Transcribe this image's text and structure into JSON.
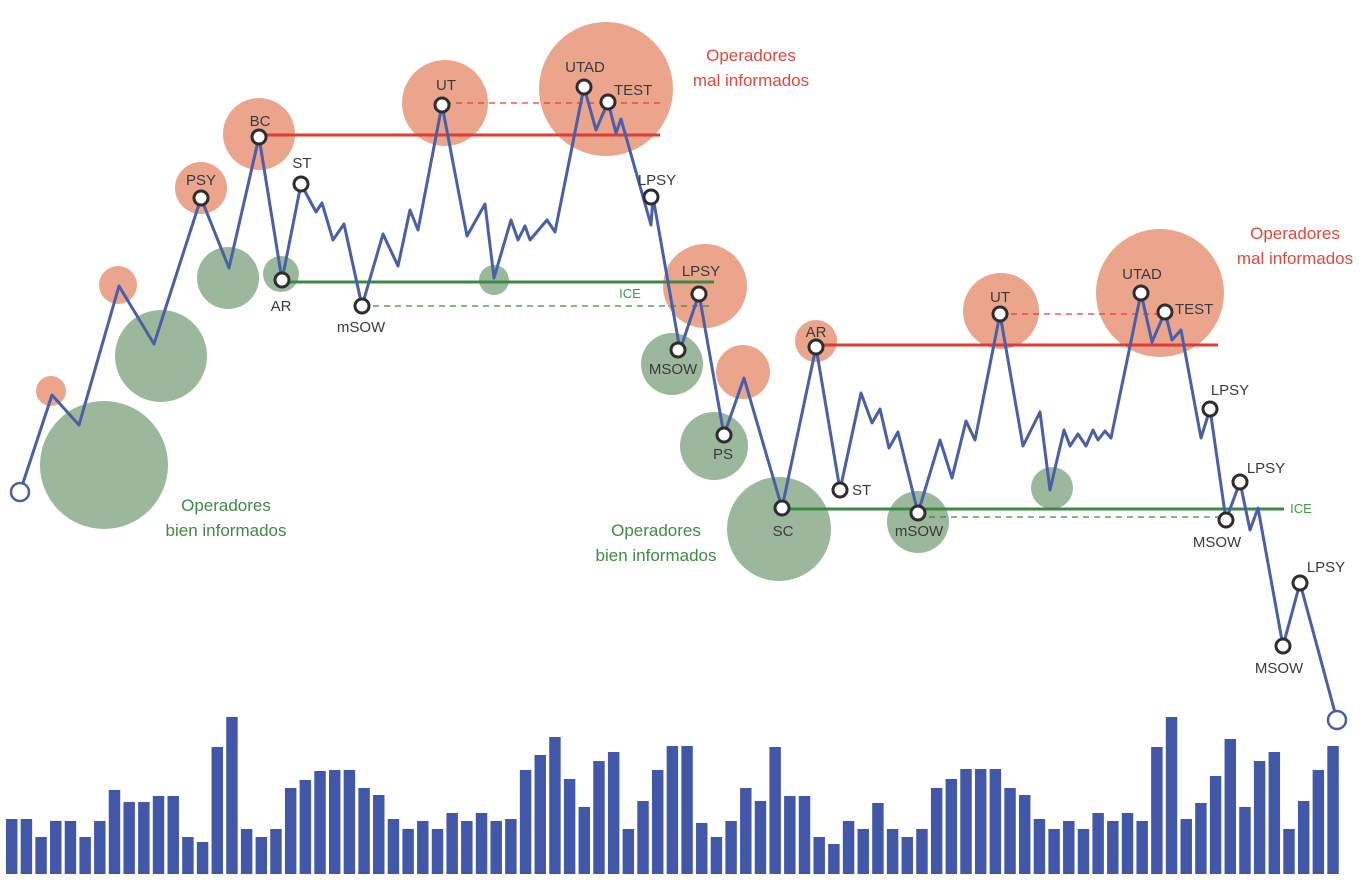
{
  "colors": {
    "price_line": "#4a5fa8",
    "bubble_red": "#eba58d",
    "bubble_green": "#9bb89c",
    "resistance": "#e23b33",
    "support": "#3a8a44",
    "volume": "#4257a8",
    "annotation_red": "#e04a3c",
    "annotation_green": "#3f8a45"
  },
  "annotations": {
    "distribution_uninformed": [
      "Operadores",
      "mal informados"
    ],
    "distribution_informed": [
      "Operadores",
      "bien informados"
    ],
    "redistribution_uninformed": [
      "Operadores",
      "mal informados"
    ],
    "redistribution_informed": [
      "Operadores",
      "bien informados"
    ]
  },
  "ice_labels": [
    "ICE",
    "ICE"
  ],
  "event_labels": {
    "psy": "PSY",
    "bc": "BC",
    "st1": "ST",
    "ar1": "AR",
    "msow1": "mSOW",
    "ut1": "UT",
    "utad1": "UTAD",
    "test1": "TEST",
    "lpsy1": "LPSY",
    "lpsy2": "LPSY",
    "msow_big1": "MSOW",
    "ps": "PS",
    "sc": "SC",
    "ar2": "AR",
    "st2": "ST",
    "msow2": "mSOW",
    "ut2": "UT",
    "utad2": "UTAD",
    "test2": "TEST",
    "lpsy3": "LPSY",
    "lpsy4": "LPSY",
    "msow_big2": "MSOW",
    "lpsy5": "LPSY",
    "msow_big3": "MSOW"
  },
  "volume": [
    55,
    55,
    37,
    53,
    53,
    37,
    53,
    84,
    72,
    72,
    78,
    78,
    37,
    32,
    127,
    157,
    45,
    37,
    45,
    86,
    94,
    103,
    104,
    104,
    86,
    79,
    55,
    45,
    53,
    45,
    61,
    53,
    61,
    53,
    55,
    104,
    119,
    137,
    95,
    67,
    113,
    122,
    45,
    73,
    104,
    128,
    128,
    51,
    37,
    53,
    86,
    73,
    127,
    78,
    78,
    37,
    30,
    53,
    45,
    71,
    45,
    37,
    45,
    86,
    95,
    105,
    105,
    105,
    86,
    79,
    55,
    45,
    53,
    45,
    61,
    53,
    61,
    53,
    127,
    157,
    55,
    71,
    98,
    135,
    67,
    113,
    122,
    45,
    73,
    104,
    128
  ]
}
